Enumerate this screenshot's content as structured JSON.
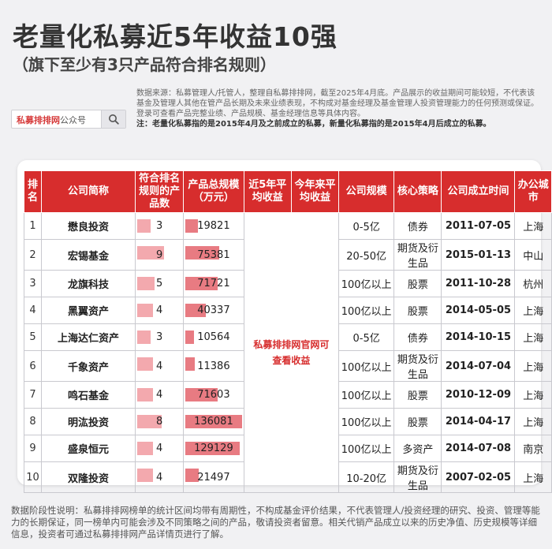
{
  "header": {
    "title": "老量化私募近5年收益10强",
    "subtitle": "（旗下至少有3只产品符合排名规则）"
  },
  "search": {
    "brand": "私募排排网",
    "suffix": "公众号"
  },
  "disclaimer": {
    "text": "数据来源：私募管理人/托管人，整理自私募排排网，截至2025年4月底。产品展示的收益期间可能较短，不代表该基金及管理人其他在管产品长期及未来业绩表现，不构成对基金经理及基金管理人投资管理能力的任何预测或保证。登录可查看产品完整业绩、产品规模、基金经理信息等具体内容。",
    "note": "注：老量化私募指的是2015年4月及之前成立的私募，新量化私募指的是2015年4月后成立的私募。"
  },
  "table": {
    "headers": [
      "排名",
      "公司简称",
      "符合排名规则的产品数",
      "产品总规模（万元）",
      "近5年平均收益",
      "今年来平均收益",
      "公司规模",
      "核心策略",
      "公司成立时间",
      "办公城市"
    ],
    "merged_note": "私募排排网官网可查看收益",
    "rows": [
      {
        "rank": "1",
        "company": "懋良投资",
        "count": "3",
        "scale": "19821",
        "size": "0-5亿",
        "strategy": "债券",
        "founded": "2011-07-05",
        "city": "上海"
      },
      {
        "rank": "2",
        "company": "宏锡基金",
        "count": "9",
        "scale": "75381",
        "size": "20-50亿",
        "strategy": "期货及衍生品",
        "founded": "2015-01-13",
        "city": "中山"
      },
      {
        "rank": "3",
        "company": "龙旗科技",
        "count": "5",
        "scale": "71721",
        "size": "100亿以上",
        "strategy": "股票",
        "founded": "2011-10-28",
        "city": "杭州"
      },
      {
        "rank": "4",
        "company": "黑翼资产",
        "count": "4",
        "scale": "40337",
        "size": "100亿以上",
        "strategy": "股票",
        "founded": "2014-05-05",
        "city": "上海"
      },
      {
        "rank": "5",
        "company": "上海达仁资产",
        "count": "3",
        "scale": "10564",
        "size": "0-5亿",
        "strategy": "债券",
        "founded": "2014-10-15",
        "city": "上海"
      },
      {
        "rank": "6",
        "company": "千象资产",
        "count": "4",
        "scale": "11386",
        "size": "100亿以上",
        "strategy": "期货及衍生品",
        "founded": "2014-07-04",
        "city": "上海"
      },
      {
        "rank": "7",
        "company": "鸣石基金",
        "count": "4",
        "scale": "71603",
        "size": "100亿以上",
        "strategy": "股票",
        "founded": "2010-12-09",
        "city": "上海"
      },
      {
        "rank": "8",
        "company": "明汯投资",
        "count": "8",
        "scale": "136081",
        "size": "100亿以上",
        "strategy": "股票",
        "founded": "2014-04-17",
        "city": "上海"
      },
      {
        "rank": "9",
        "company": "盛泉恒元",
        "count": "4",
        "scale": "129129",
        "size": "100亿以上",
        "strategy": "多资产",
        "founded": "2014-07-08",
        "city": "南京"
      },
      {
        "rank": "10",
        "company": "双隆投资",
        "count": "4",
        "scale": "21497",
        "size": "10-20亿",
        "strategy": "期货及衍生品",
        "founded": "2007-02-05",
        "city": "上海"
      }
    ]
  },
  "footer": {
    "text": "数据阶段性说明：私募排排网榜单的统计区间均带有周期性，不构成基金评价结果，不代表管理人/投资经理的研究、投资、管理等能力的长期保证，同一榜单内可能会涉及不同策略之间的产品，敬请投资者留意。相关代销产品成立以来的历史净值、历史规模等详细信息，投资者可通过私募排排网产品详情页进行了解。"
  }
}
